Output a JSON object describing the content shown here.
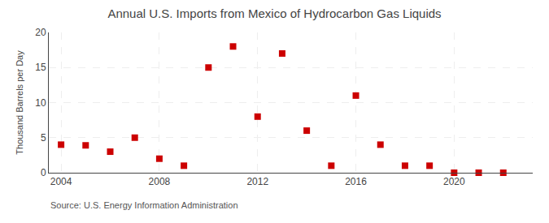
{
  "chart_data": {
    "type": "scatter",
    "title": "Annual U.S. Imports from Mexico of Hydrocarbon Gas Liquids",
    "ylabel": "Thousand Barrels per Day",
    "annotations": [
      "Source: U.S. Energy Information Administration"
    ],
    "x": [
      2004,
      2005,
      2006,
      2007,
      2008,
      2009,
      2010,
      2011,
      2012,
      2013,
      2014,
      2015,
      2016,
      2017,
      2018,
      2019,
      2020,
      2021,
      2022
    ],
    "values": [
      4.0,
      3.9,
      3.0,
      5.0,
      2.0,
      1.0,
      15.0,
      18.0,
      8.0,
      17.0,
      6.0,
      1.0,
      11.0,
      4.0,
      1.0,
      1.0,
      0.0,
      0.0,
      0.0
    ],
    "color": "#cc0000",
    "marker": "square",
    "xlim": [
      2003.5,
      2023.2
    ],
    "xticks": [
      2004,
      2008,
      2012,
      2016,
      2020
    ],
    "ylim": [
      0,
      20
    ],
    "yticks": [
      0,
      5,
      10,
      15,
      20
    ],
    "grid": true
  }
}
